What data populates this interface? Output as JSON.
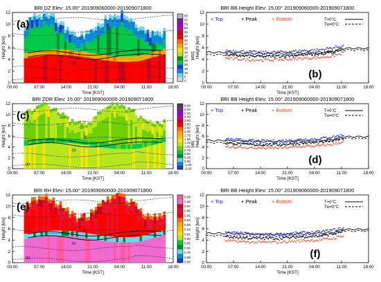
{
  "chart_data": [
    {
      "id": "a",
      "type": "heatmap",
      "panel_label": "(a)",
      "title": "BRI  DZ Elev: 15.00° 201909060000-201909071800",
      "xlabel": "Time [KST]",
      "ylabel": "Height [km]",
      "x_ticks": [
        "00:00",
        "07:00",
        "14:00",
        "21:00",
        "04:00",
        "11:00",
        "18:00"
      ],
      "y_ticks": [
        "0",
        "2",
        "4",
        "6",
        "8",
        "10",
        "12"
      ],
      "ylim": [
        0,
        12
      ],
      "colorbar_unit": "[dBZ]",
      "colorbar_ticks": [
        "60",
        "57",
        "55",
        "50",
        "45",
        "42",
        "40",
        "37",
        "35",
        "30",
        "27",
        "25",
        "20",
        "15",
        "10",
        "5",
        "0"
      ],
      "colorbar_colors": [
        "#d6d6d6",
        "#6fd4ef",
        "#0d8ad6",
        "#1a3fd1",
        "#00c94a",
        "#008a27",
        "#b6e61e",
        "#ffe300",
        "#ffa800",
        "#ff6a00",
        "#ff0000",
        "#c8001e",
        "#c90090",
        "#9a00c9",
        "#6b2a92",
        "#b8b8b8"
      ],
      "contour_labels": [
        "20",
        "10",
        "0",
        "-20"
      ]
    },
    {
      "id": "c",
      "type": "heatmap",
      "panel_label": "(c)",
      "title": "BRI  ZDR Elev: 15.00° 201909060000-201909071800",
      "xlabel": "Time [KST]",
      "ylabel": "Height [km]",
      "x_ticks": [
        "00:00",
        "07:00",
        "14:00",
        "21:00",
        "04:00",
        "11:00",
        "18:00"
      ],
      "y_ticks": [
        "0",
        "2",
        "4",
        "6",
        "8",
        "10",
        "12"
      ],
      "ylim": [
        0,
        12
      ],
      "colorbar_unit": "[dB]",
      "colorbar_ticks": [
        "8.00",
        "6.00",
        "5.00",
        "4.00",
        "3.50",
        "3.00",
        "2.50",
        "2.00",
        "1.75",
        "1.50",
        "1.25",
        "1.00",
        "0.75",
        "0.50",
        "0.25",
        "0.00",
        "-1.00",
        "-2.00"
      ],
      "colorbar_colors": [
        "#1a3fd1",
        "#0d8ad6",
        "#6fd4ef",
        "#008a27",
        "#00c94a",
        "#6ed000",
        "#b6e61e",
        "#ffe300",
        "#ffc000",
        "#ffa800",
        "#ff6a00",
        "#ff0000",
        "#c8001e",
        "#c90090",
        "#9a00c9",
        "#6b2a92",
        "#444444"
      ],
      "contour_labels": [
        "-20",
        "-10",
        "0",
        "10",
        "20"
      ]
    },
    {
      "id": "e",
      "type": "heatmap",
      "panel_label": "(e)",
      "title": "BRI  RH Elev: 15.00° 201909060000-201909071800",
      "xlabel": "Time [KST]",
      "ylabel": "Height [km]",
      "x_ticks": [
        "00:00",
        "07:00",
        "14:00",
        "21:00",
        "04:00",
        "11:00",
        "18:00"
      ],
      "y_ticks": [
        "0",
        "2",
        "4",
        "6",
        "8",
        "10",
        "12"
      ],
      "ylim": [
        0,
        12
      ],
      "colorbar_unit": "",
      "colorbar_ticks": [
        "0.99",
        "0.98",
        "0.97",
        "0.96",
        "0.95",
        "0.94",
        "0.93",
        "0.92",
        "0.91",
        "0.90",
        "0.85",
        "0.80",
        "0.70",
        "0.60",
        "0.50"
      ],
      "colorbar_colors": [
        "#1a3fd1",
        "#0d8ad6",
        "#6fd4ef",
        "#008a27",
        "#00c94a",
        "#b6e61e",
        "#ffe300",
        "#ffc000",
        "#ffa800",
        "#ff6a00",
        "#ff0000",
        "#e8102a",
        "#c8001e",
        "#f06ad0",
        "#ff5aa0"
      ],
      "contour_labels": [
        "-20",
        "-10",
        "0",
        "10",
        "20"
      ]
    },
    {
      "id": "b",
      "type": "scatter",
      "panel_label": "(b)",
      "title": "BRI  BB Height Elev: 15.00° 201909060000-201909071800",
      "xlabel": "Time [KST]",
      "ylabel": "Height [km]",
      "x_ticks": [
        "00:00",
        "07:00",
        "14:00",
        "21:00",
        "04:00",
        "11:00",
        "18:00"
      ],
      "y_ticks": [
        "0",
        "2",
        "4",
        "6",
        "8",
        "10",
        "12"
      ],
      "ylim": [
        0,
        12
      ],
      "legend": [
        "+ Top",
        "+ Peak",
        "+ Bottom"
      ],
      "legend_lines": [
        "T=0°C",
        "Tw=0°C"
      ],
      "x_hours": [
        5,
        9,
        13,
        17,
        21,
        25,
        29,
        33,
        35.5
      ],
      "series": [
        {
          "name": "Top",
          "color": "#2222ee",
          "values": [
            5.5,
            5.4,
            5.2,
            5.2,
            5.3,
            5.5,
            5.6,
            6.0,
            6.3
          ]
        },
        {
          "name": "Peak",
          "color": "#000000",
          "values": [
            4.8,
            4.6,
            4.5,
            4.5,
            4.6,
            4.8,
            4.9,
            5.3,
            5.8
          ]
        },
        {
          "name": "Bottom",
          "color": "#ff4422",
          "values": [
            4.2,
            4.0,
            3.9,
            3.9,
            4.0,
            4.2,
            4.3,
            4.6,
            5.1
          ]
        }
      ],
      "reference_lines": [
        {
          "name": "T=0°C",
          "values": [
            5.2,
            5.1,
            5.0,
            5.0,
            5.0,
            5.1,
            5.2,
            5.4,
            5.9
          ]
        },
        {
          "name": "Tw=0°C",
          "values": [
            4.8,
            4.7,
            4.6,
            4.6,
            4.7,
            4.8,
            4.9,
            5.1,
            5.6
          ]
        }
      ]
    },
    {
      "id": "d",
      "type": "scatter",
      "panel_label": "(d)",
      "title": "BRI  BB Height Elev: 15.00° 201909060000-201909071800",
      "xlabel": "Time [KST]",
      "ylabel": "Height [km]",
      "x_ticks": [
        "00:00",
        "07:00",
        "14:00",
        "21:00",
        "04:00",
        "11:00",
        "18:00"
      ],
      "y_ticks": [
        "0",
        "2",
        "4",
        "6",
        "8",
        "10",
        "12"
      ],
      "ylim": [
        0,
        12
      ],
      "legend": [
        "+ Top",
        "+ Peak",
        "+ Bottom"
      ],
      "legend_lines": [
        "T=0°C",
        "Tw=0°C"
      ],
      "x_hours": [
        5,
        9,
        13,
        17,
        21,
        25,
        29,
        33,
        35.5
      ],
      "series": [
        {
          "name": "Top",
          "color": "#2222ee",
          "values": [
            5.4,
            5.3,
            5.1,
            5.1,
            5.2,
            5.4,
            5.5,
            5.9,
            6.2
          ]
        },
        {
          "name": "Peak",
          "color": "#000000",
          "values": [
            4.7,
            4.5,
            4.4,
            4.4,
            4.5,
            4.7,
            4.8,
            5.2,
            5.7
          ]
        },
        {
          "name": "Bottom",
          "color": "#ff4422",
          "values": [
            4.1,
            3.9,
            3.8,
            3.8,
            3.9,
            4.1,
            4.2,
            4.5,
            5.0
          ]
        }
      ],
      "reference_lines": [
        {
          "name": "T=0°C",
          "values": [
            5.2,
            5.1,
            5.0,
            5.0,
            5.0,
            5.1,
            5.2,
            5.4,
            5.9
          ]
        },
        {
          "name": "Tw=0°C",
          "values": [
            4.8,
            4.7,
            4.6,
            4.6,
            4.7,
            4.8,
            4.9,
            5.1,
            5.6
          ]
        }
      ]
    },
    {
      "id": "f",
      "type": "scatter",
      "panel_label": "(f)",
      "title": "BRI  BB Height Elev: 15.00° 201909060000-201909071800",
      "xlabel": "Time [KST]",
      "ylabel": "Height [km]",
      "x_ticks": [
        "00:00",
        "07:00",
        "14:00",
        "21:00",
        "04:00",
        "11:00",
        "18:00"
      ],
      "y_ticks": [
        "0",
        "2",
        "4",
        "6",
        "8",
        "10",
        "12"
      ],
      "ylim": [
        0,
        12
      ],
      "legend": [
        "+ Top",
        "+ Peak",
        "+ Bottom"
      ],
      "legend_lines": [
        "T=0°C",
        "Tw=0°C"
      ],
      "x_hours": [
        5,
        9,
        13,
        17,
        21,
        25,
        29,
        33,
        35.5
      ],
      "series": [
        {
          "name": "Top",
          "color": "#2222ee",
          "values": [
            5.3,
            5.2,
            5.0,
            5.0,
            5.1,
            5.3,
            5.4,
            5.8,
            6.1
          ]
        },
        {
          "name": "Peak",
          "color": "#000000",
          "values": [
            4.6,
            4.4,
            4.3,
            4.3,
            4.4,
            4.6,
            4.7,
            5.1,
            5.6
          ]
        },
        {
          "name": "Bottom",
          "color": "#ff4422",
          "values": [
            3.9,
            3.7,
            3.6,
            3.6,
            3.7,
            3.9,
            4.0,
            4.3,
            4.8
          ]
        }
      ],
      "reference_lines": [
        {
          "name": "T=0°C",
          "values": [
            5.2,
            5.1,
            5.0,
            5.0,
            5.0,
            5.1,
            5.2,
            5.4,
            5.9
          ]
        },
        {
          "name": "Tw=0°C",
          "values": [
            4.8,
            4.7,
            4.6,
            4.6,
            4.7,
            4.8,
            4.9,
            5.1,
            5.6
          ]
        }
      ]
    }
  ]
}
